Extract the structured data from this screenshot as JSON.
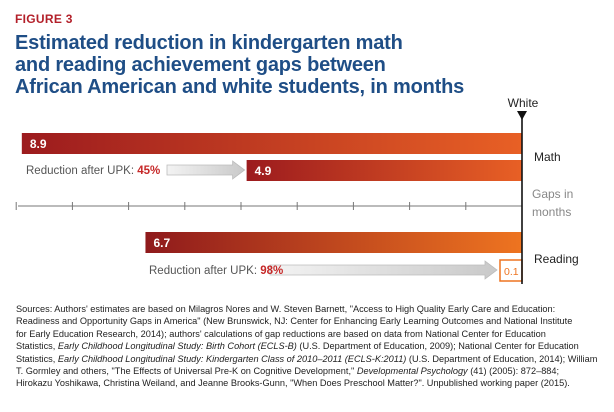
{
  "figure_label": "FIGURE 3",
  "title_lines": [
    "Estimated reduction in kindergarten math",
    "and reading achievement gaps between",
    "African American and white students, in months"
  ],
  "colors": {
    "title": "#1f4e86",
    "figure_label": "#b3202a",
    "math_dark": "#9c1b1e",
    "math_light": "#e86025",
    "reading_dark": "#8f1a1c",
    "reading_light": "#ee7420",
    "reduction_pct": "#c62828",
    "reference_line": "#111111"
  },
  "chart_data": {
    "type": "bar",
    "orientation": "horizontal",
    "title": "Estimated reduction in kindergarten math and reading achievement gaps between African American and white students, in months",
    "reference_label": "White",
    "axis_label": "Gaps in months",
    "x_range": [
      0,
      10
    ],
    "tick_step": 1,
    "categories": [
      {
        "name": "Math",
        "gap_before": 8.9,
        "gap_before_label": "8.9",
        "gap_after": 4.9,
        "gap_after_label": "4.9",
        "reduction_prefix": "Reduction after UPK: ",
        "reduction_pct": "45%"
      },
      {
        "name": "Reading",
        "gap_before": 6.7,
        "gap_before_label": "6.7",
        "gap_after": 0.1,
        "gap_after_label": "0.1",
        "reduction_prefix": "Reduction after UPK: ",
        "reduction_pct": "98%"
      }
    ]
  },
  "sources": {
    "l1": "Sources: Authors' estimates are based on Milagros Nores and W. Steven Barnett, \"Access to High Quality Early Care and Education:",
    "l2": "Readiness and Opportunity Gaps in America\" (New Brunswick, NJ: Center for Enhancing Early Learning Outcomes and National Institute",
    "l3": "for Early Education Research, 2014); authors' calculations of gap reductions are based on data from National Center for Education",
    "l4a": "Statistics, ",
    "l4i": "Early Childhood Longitudinal Study: Birth Cohort (ECLS-B)",
    "l4b": " (U.S. Department of Education, 2009); National Center for Education",
    "l5a": "Statistics, ",
    "l5i": "Early Childhood Longitudinal Study: Kindergarten Class of 2010–2011 (ECLS-K:2011)",
    "l5b": " (U.S. Department of Education, 2014); William",
    "l6a": "T. Gormley and others, \"The Effects of Universal Pre-K on Cognitive Development,\" ",
    "l6i": "Developmental Psychology",
    "l6b": " (41) (2005): 872–884;",
    "l7": "Hirokazu Yoshikawa, Christina Weiland, and Jeanne Brooks-Gunn, \"When Does Preschool Matter?\". Unpublished working paper (2015)."
  }
}
